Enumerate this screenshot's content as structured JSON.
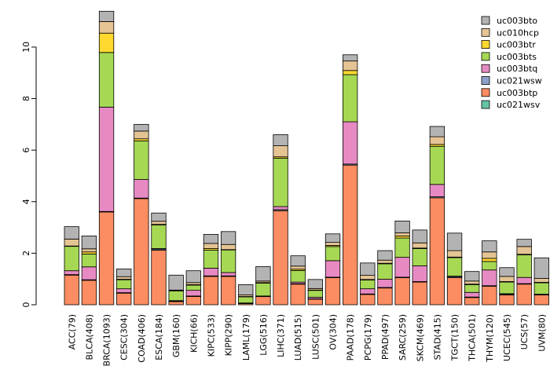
{
  "chart_data": {
    "type": "bar",
    "stacked": true,
    "title": "",
    "xlabel": "",
    "ylabel": "",
    "ylim": [
      0,
      11.4
    ],
    "yticks": [
      0,
      2,
      4,
      6,
      8,
      10
    ],
    "categories": [
      "ACC(79)",
      "BLCA(408)",
      "BRCA(1093)",
      "CESC(304)",
      "COAD(406)",
      "ESCA(184)",
      "GBM(160)",
      "KICH(66)",
      "KIPC(533)",
      "KIPP(290)",
      "LAML(179)",
      "LGG(516)",
      "LIHC(371)",
      "LUAD(515)",
      "LUSC(501)",
      "OV(304)",
      "PAAD(178)",
      "PCPG(179)",
      "PPAD(497)",
      "SARC(259)",
      "SKCM(469)",
      "STAD(415)",
      "TGCT(150)",
      "THCA(501)",
      "THYM(120)",
      "UCEC(545)",
      "UCS(57)",
      "UVM(80)"
    ],
    "series": [
      {
        "name": "uc021wsv",
        "color": "#66c2a5",
        "values": [
          0,
          0,
          0,
          0,
          0,
          0,
          0,
          0,
          0,
          0,
          0,
          0,
          0,
          0,
          0,
          0,
          0,
          0,
          0,
          0,
          0,
          0,
          0,
          0,
          0,
          0,
          0,
          0
        ]
      },
      {
        "name": "uc003btp",
        "color": "#fc8d62",
        "values": [
          1.15,
          0.95,
          3.6,
          0.45,
          4.12,
          2.12,
          0.12,
          0.32,
          1.1,
          1.1,
          0.05,
          0.32,
          3.65,
          0.8,
          0.22,
          1.05,
          5.42,
          0.4,
          0.65,
          1.05,
          0.88,
          4.15,
          1.05,
          0.28,
          0.72,
          0.38,
          0.8,
          0.38
        ]
      },
      {
        "name": "uc021wsw",
        "color": "#8da0cb",
        "values": [
          0.02,
          0.02,
          0.02,
          0.02,
          0.02,
          0.04,
          0.02,
          0.02,
          0.02,
          0.02,
          0.01,
          0.01,
          0.04,
          0.02,
          0.01,
          0.02,
          0.04,
          0.02,
          0.02,
          0.02,
          0.02,
          0.04,
          0.04,
          0.02,
          0.02,
          0.02,
          0.02,
          0.02
        ]
      },
      {
        "name": "uc003btq",
        "color": "#e78ac3",
        "values": [
          0.15,
          0.5,
          4.05,
          0.15,
          0.72,
          0.02,
          0.02,
          0.22,
          0.3,
          0.13,
          0.01,
          0.01,
          0.12,
          0.06,
          0.06,
          0.64,
          1.64,
          0.2,
          0.32,
          0.77,
          0.61,
          0.48,
          0.02,
          0.18,
          0.61,
          0.03,
          0.24,
          0.01
        ]
      },
      {
        "name": "uc003bts",
        "color": "#a6d854",
        "values": [
          0.95,
          0.5,
          2.12,
          0.35,
          1.5,
          0.92,
          0.38,
          0.2,
          0.7,
          0.88,
          0.24,
          0.5,
          1.88,
          0.45,
          0.27,
          0.55,
          1.83,
          0.34,
          0.6,
          0.75,
          0.67,
          1.48,
          0.72,
          0.3,
          0.33,
          0.45,
          0.88,
          0.44
        ]
      },
      {
        "name": "uc003btr",
        "color": "#ffd92f",
        "values": [
          0.01,
          0.08,
          0.75,
          0.02,
          0.08,
          0.02,
          0.01,
          0.02,
          0.06,
          0.01,
          0.01,
          0.02,
          0.05,
          0.05,
          0.01,
          0.04,
          0.16,
          0.02,
          0.02,
          0.08,
          0.02,
          0.07,
          0.02,
          0.02,
          0.12,
          0.02,
          0.02,
          0.02
        ]
      },
      {
        "name": "uc010hcp",
        "color": "#e5c494",
        "values": [
          0.27,
          0.12,
          0.45,
          0.1,
          0.3,
          0.12,
          0.02,
          0.08,
          0.2,
          0.2,
          0.06,
          0.06,
          0.43,
          0.12,
          0.06,
          0.12,
          0.37,
          0.16,
          0.12,
          0.12,
          0.2,
          0.3,
          0.25,
          0.12,
          0.25,
          0.2,
          0.3,
          0.15
        ]
      },
      {
        "name": "uc003bto",
        "color": "#b3b3b3",
        "values": [
          0.48,
          0.5,
          0.4,
          0.3,
          0.26,
          0.32,
          0.58,
          0.46,
          0.35,
          0.5,
          0.4,
          0.56,
          0.43,
          0.4,
          0.35,
          0.33,
          0.24,
          0.48,
          0.37,
          0.46,
          0.5,
          0.4,
          0.68,
          0.37,
          0.43,
          0.34,
          0.28,
          0.8
        ]
      }
    ],
    "legend": {
      "position": "top-right",
      "order": [
        "uc003bto",
        "uc010hcp",
        "uc003btr",
        "uc003bts",
        "uc003btq",
        "uc021wsw",
        "uc003btp",
        "uc021wsv"
      ]
    }
  }
}
